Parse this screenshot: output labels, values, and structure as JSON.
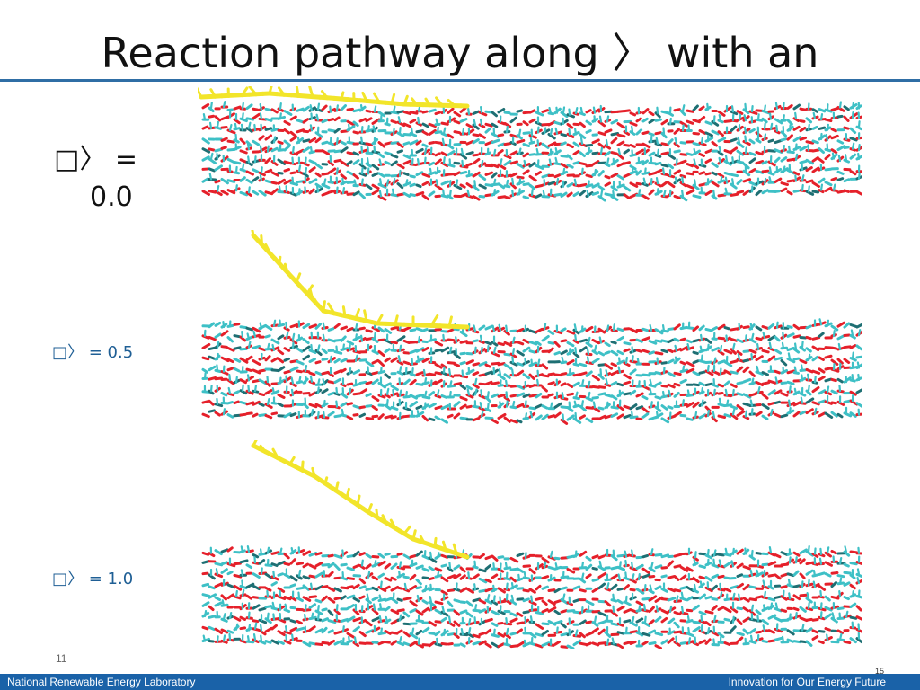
{
  "slide": {
    "title": "Reaction pathway along 〉 with an",
    "labels": [
      {
        "line1": "□〉 =",
        "line2": "0.0"
      },
      {
        "text": "□〉 = 0.5"
      },
      {
        "text": "□〉 = 1.0"
      }
    ],
    "page_number": "11",
    "page_number_right": "15"
  },
  "footer": {
    "left_text": "National Renewable Energy Laboratory",
    "right_text": "Innovation for Our Energy Future"
  },
  "colors": {
    "title_rule": "#2f6ea5",
    "footer_bg": "#1a62a8",
    "oxygen": "#e5202a",
    "carbon": "#3ec0c6",
    "dark_carbon": "#1e6f73",
    "ligand": "#f2e52a"
  }
}
